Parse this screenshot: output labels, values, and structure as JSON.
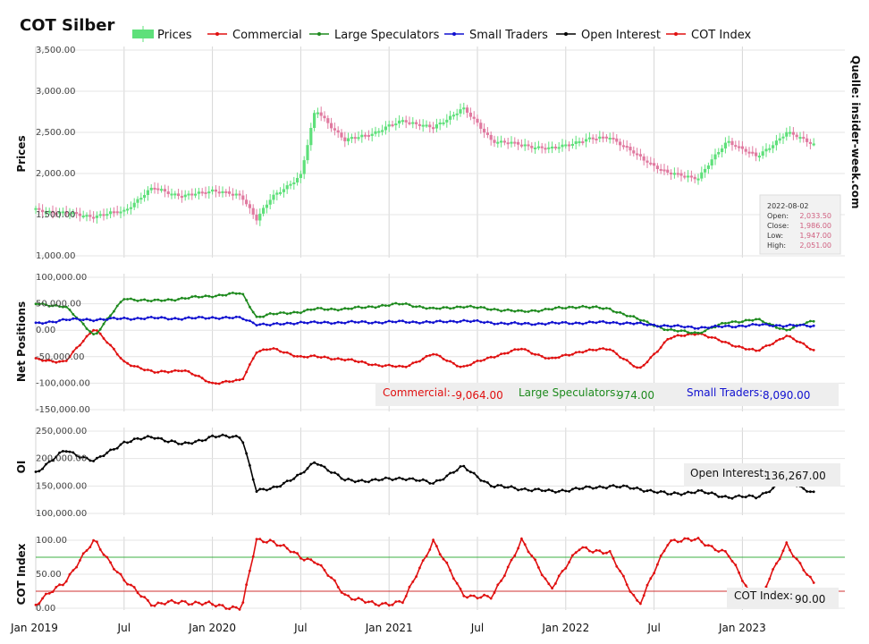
{
  "title": "COT Silber",
  "source": "Quelle: insider-week.com",
  "legend": [
    {
      "name": "Prices",
      "color": "#5ee07a",
      "kind": "bar"
    },
    {
      "name": "Commercial",
      "color": "#e01010",
      "kind": "line"
    },
    {
      "name": "Large Speculators",
      "color": "#1e8a1e",
      "kind": "line"
    },
    {
      "name": "Small Traders",
      "color": "#1010d0",
      "kind": "line"
    },
    {
      "name": "Open Interest",
      "color": "#000000",
      "kind": "line"
    },
    {
      "name": "COT Index",
      "color": "#e01010",
      "kind": "line"
    }
  ],
  "x_ticks": [
    "Jan 2019",
    "Jul",
    "Jan 2020",
    "Jul",
    "Jan 2021",
    "Jul",
    "Jan 2022",
    "Jul",
    "Jan 2023"
  ],
  "tooltip": {
    "date": "2022-08-02",
    "rows": [
      {
        "label": "Open:",
        "value": "2,033.50"
      },
      {
        "label": "Close:",
        "value": "1,986.00"
      },
      {
        "label": "Low:",
        "value": "1,947.00"
      },
      {
        "label": "High:",
        "value": "2,051.00"
      }
    ]
  },
  "net_readout": [
    {
      "label": "Commercial:",
      "value": "-9,064.00",
      "color": "#e01010"
    },
    {
      "label": "Large Speculators:",
      "value": "974.00",
      "color": "#1e8a1e"
    },
    {
      "label": "Small Traders:",
      "value": "8,090.00",
      "color": "#1010d0"
    }
  ],
  "oi_readout": {
    "label": "Open Interest:",
    "value": "136,267.00"
  },
  "cot_readout": {
    "label": "COT Index:",
    "value": "90.00"
  },
  "chart_data": [
    {
      "type": "candlestick",
      "ylabel": "Prices",
      "ylim": [
        1000,
        3500
      ],
      "y_ticks": [
        "3,500.00",
        "3,000.00",
        "2,500.00",
        "2,000.00",
        "1,500.00",
        "1,000.00"
      ],
      "x": [
        "2019-01",
        "2019-03",
        "2019-05",
        "2019-07",
        "2019-09",
        "2019-11",
        "2020-01",
        "2020-03",
        "2020-04",
        "2020-05",
        "2020-07",
        "2020-08",
        "2020-10",
        "2020-12",
        "2021-02",
        "2021-04",
        "2021-06",
        "2021-08",
        "2021-10",
        "2021-12",
        "2022-02",
        "2022-04",
        "2022-06",
        "2022-08",
        "2022-10",
        "2022-12",
        "2023-02",
        "2023-04",
        "2023-06"
      ],
      "close": [
        1560,
        1520,
        1480,
        1550,
        1830,
        1720,
        1800,
        1720,
        1450,
        1700,
        1980,
        2780,
        2400,
        2500,
        2650,
        2550,
        2800,
        2400,
        2350,
        2300,
        2400,
        2450,
        2200,
        2000,
        1950,
        2400,
        2200,
        2500,
        2350
      ]
    },
    {
      "type": "line",
      "ylabel": "Net Positions",
      "ylim": [
        -150000,
        100000
      ],
      "y_ticks": [
        "100,000.00",
        "50,000.00",
        "0.00",
        "-50,000.00",
        "-100,000.00",
        "-150,000.00"
      ],
      "x": [
        "2019-01",
        "2019-03",
        "2019-05",
        "2019-07",
        "2019-09",
        "2019-11",
        "2020-01",
        "2020-03",
        "2020-04",
        "2020-05",
        "2020-07",
        "2020-08",
        "2020-10",
        "2020-12",
        "2021-02",
        "2021-04",
        "2021-06",
        "2021-08",
        "2021-10",
        "2021-12",
        "2022-02",
        "2022-04",
        "2022-06",
        "2022-08",
        "2022-10",
        "2022-12",
        "2023-02",
        "2023-04",
        "2023-06"
      ],
      "series": [
        {
          "name": "Commercial",
          "values": [
            -55000,
            -60000,
            5000,
            -60000,
            -80000,
            -75000,
            -100000,
            -95000,
            -40000,
            -35000,
            -50000,
            -50000,
            -55000,
            -65000,
            -70000,
            -45000,
            -70000,
            -50000,
            -35000,
            -55000,
            -40000,
            -35000,
            -75000,
            -15000,
            -5000,
            -25000,
            -40000,
            -10000,
            -40000
          ]
        },
        {
          "name": "Large Speculators",
          "values": [
            50000,
            45000,
            -10000,
            60000,
            55000,
            60000,
            65000,
            70000,
            25000,
            30000,
            35000,
            40000,
            40000,
            45000,
            50000,
            40000,
            45000,
            40000,
            35000,
            40000,
            45000,
            40000,
            20000,
            0,
            -5000,
            15000,
            20000,
            0,
            20000
          ]
        },
        {
          "name": "Small Traders",
          "values": [
            12000,
            20000,
            20000,
            22000,
            23000,
            22000,
            24000,
            23000,
            12000,
            10000,
            15000,
            14000,
            15000,
            15000,
            16000,
            15000,
            18000,
            14000,
            12000,
            13000,
            14000,
            15000,
            12000,
            8000,
            5000,
            7000,
            10000,
            9000,
            8000
          ]
        }
      ]
    },
    {
      "type": "line",
      "ylabel": "OI",
      "ylim": [
        100000,
        250000
      ],
      "y_ticks": [
        "250,000.00",
        "200,000.00",
        "150,000.00",
        "100,000.00"
      ],
      "x": [
        "2019-01",
        "2019-03",
        "2019-05",
        "2019-07",
        "2019-09",
        "2019-11",
        "2020-01",
        "2020-03",
        "2020-04",
        "2020-05",
        "2020-07",
        "2020-08",
        "2020-10",
        "2020-12",
        "2021-02",
        "2021-04",
        "2021-06",
        "2021-08",
        "2021-10",
        "2021-12",
        "2022-02",
        "2022-04",
        "2022-06",
        "2022-08",
        "2022-10",
        "2022-12",
        "2023-02",
        "2023-04",
        "2023-06"
      ],
      "series": [
        {
          "name": "Open Interest",
          "values": [
            175000,
            215000,
            195000,
            230000,
            240000,
            225000,
            240000,
            240000,
            140000,
            145000,
            170000,
            195000,
            160000,
            160000,
            165000,
            155000,
            185000,
            150000,
            145000,
            140000,
            145000,
            150000,
            145000,
            135000,
            140000,
            130000,
            130000,
            160000,
            136000
          ]
        }
      ]
    },
    {
      "type": "line",
      "ylabel": "COT Index",
      "ylim": [
        0,
        100
      ],
      "y_ticks": [
        "100.00",
        "50.00",
        "0.00"
      ],
      "reference_lines": [
        {
          "value": 75,
          "color": "#3cb043"
        },
        {
          "value": 25,
          "color": "#d03030"
        }
      ],
      "x": [
        "2019-01",
        "2019-03",
        "2019-05",
        "2019-07",
        "2019-09",
        "2019-11",
        "2020-01",
        "2020-03",
        "2020-04",
        "2020-05",
        "2020-07",
        "2020-08",
        "2020-10",
        "2020-12",
        "2021-02",
        "2021-04",
        "2021-06",
        "2021-08",
        "2021-10",
        "2021-12",
        "2022-02",
        "2022-04",
        "2022-06",
        "2022-08",
        "2022-10",
        "2022-12",
        "2023-02",
        "2023-04",
        "2023-06"
      ],
      "series": [
        {
          "name": "COT Index",
          "values": [
            5,
            40,
            100,
            40,
            5,
            10,
            5,
            0,
            100,
            100,
            75,
            70,
            20,
            5,
            10,
            100,
            20,
            15,
            100,
            30,
            90,
            80,
            5,
            100,
            100,
            80,
            5,
            95,
            30
          ]
        }
      ]
    }
  ]
}
